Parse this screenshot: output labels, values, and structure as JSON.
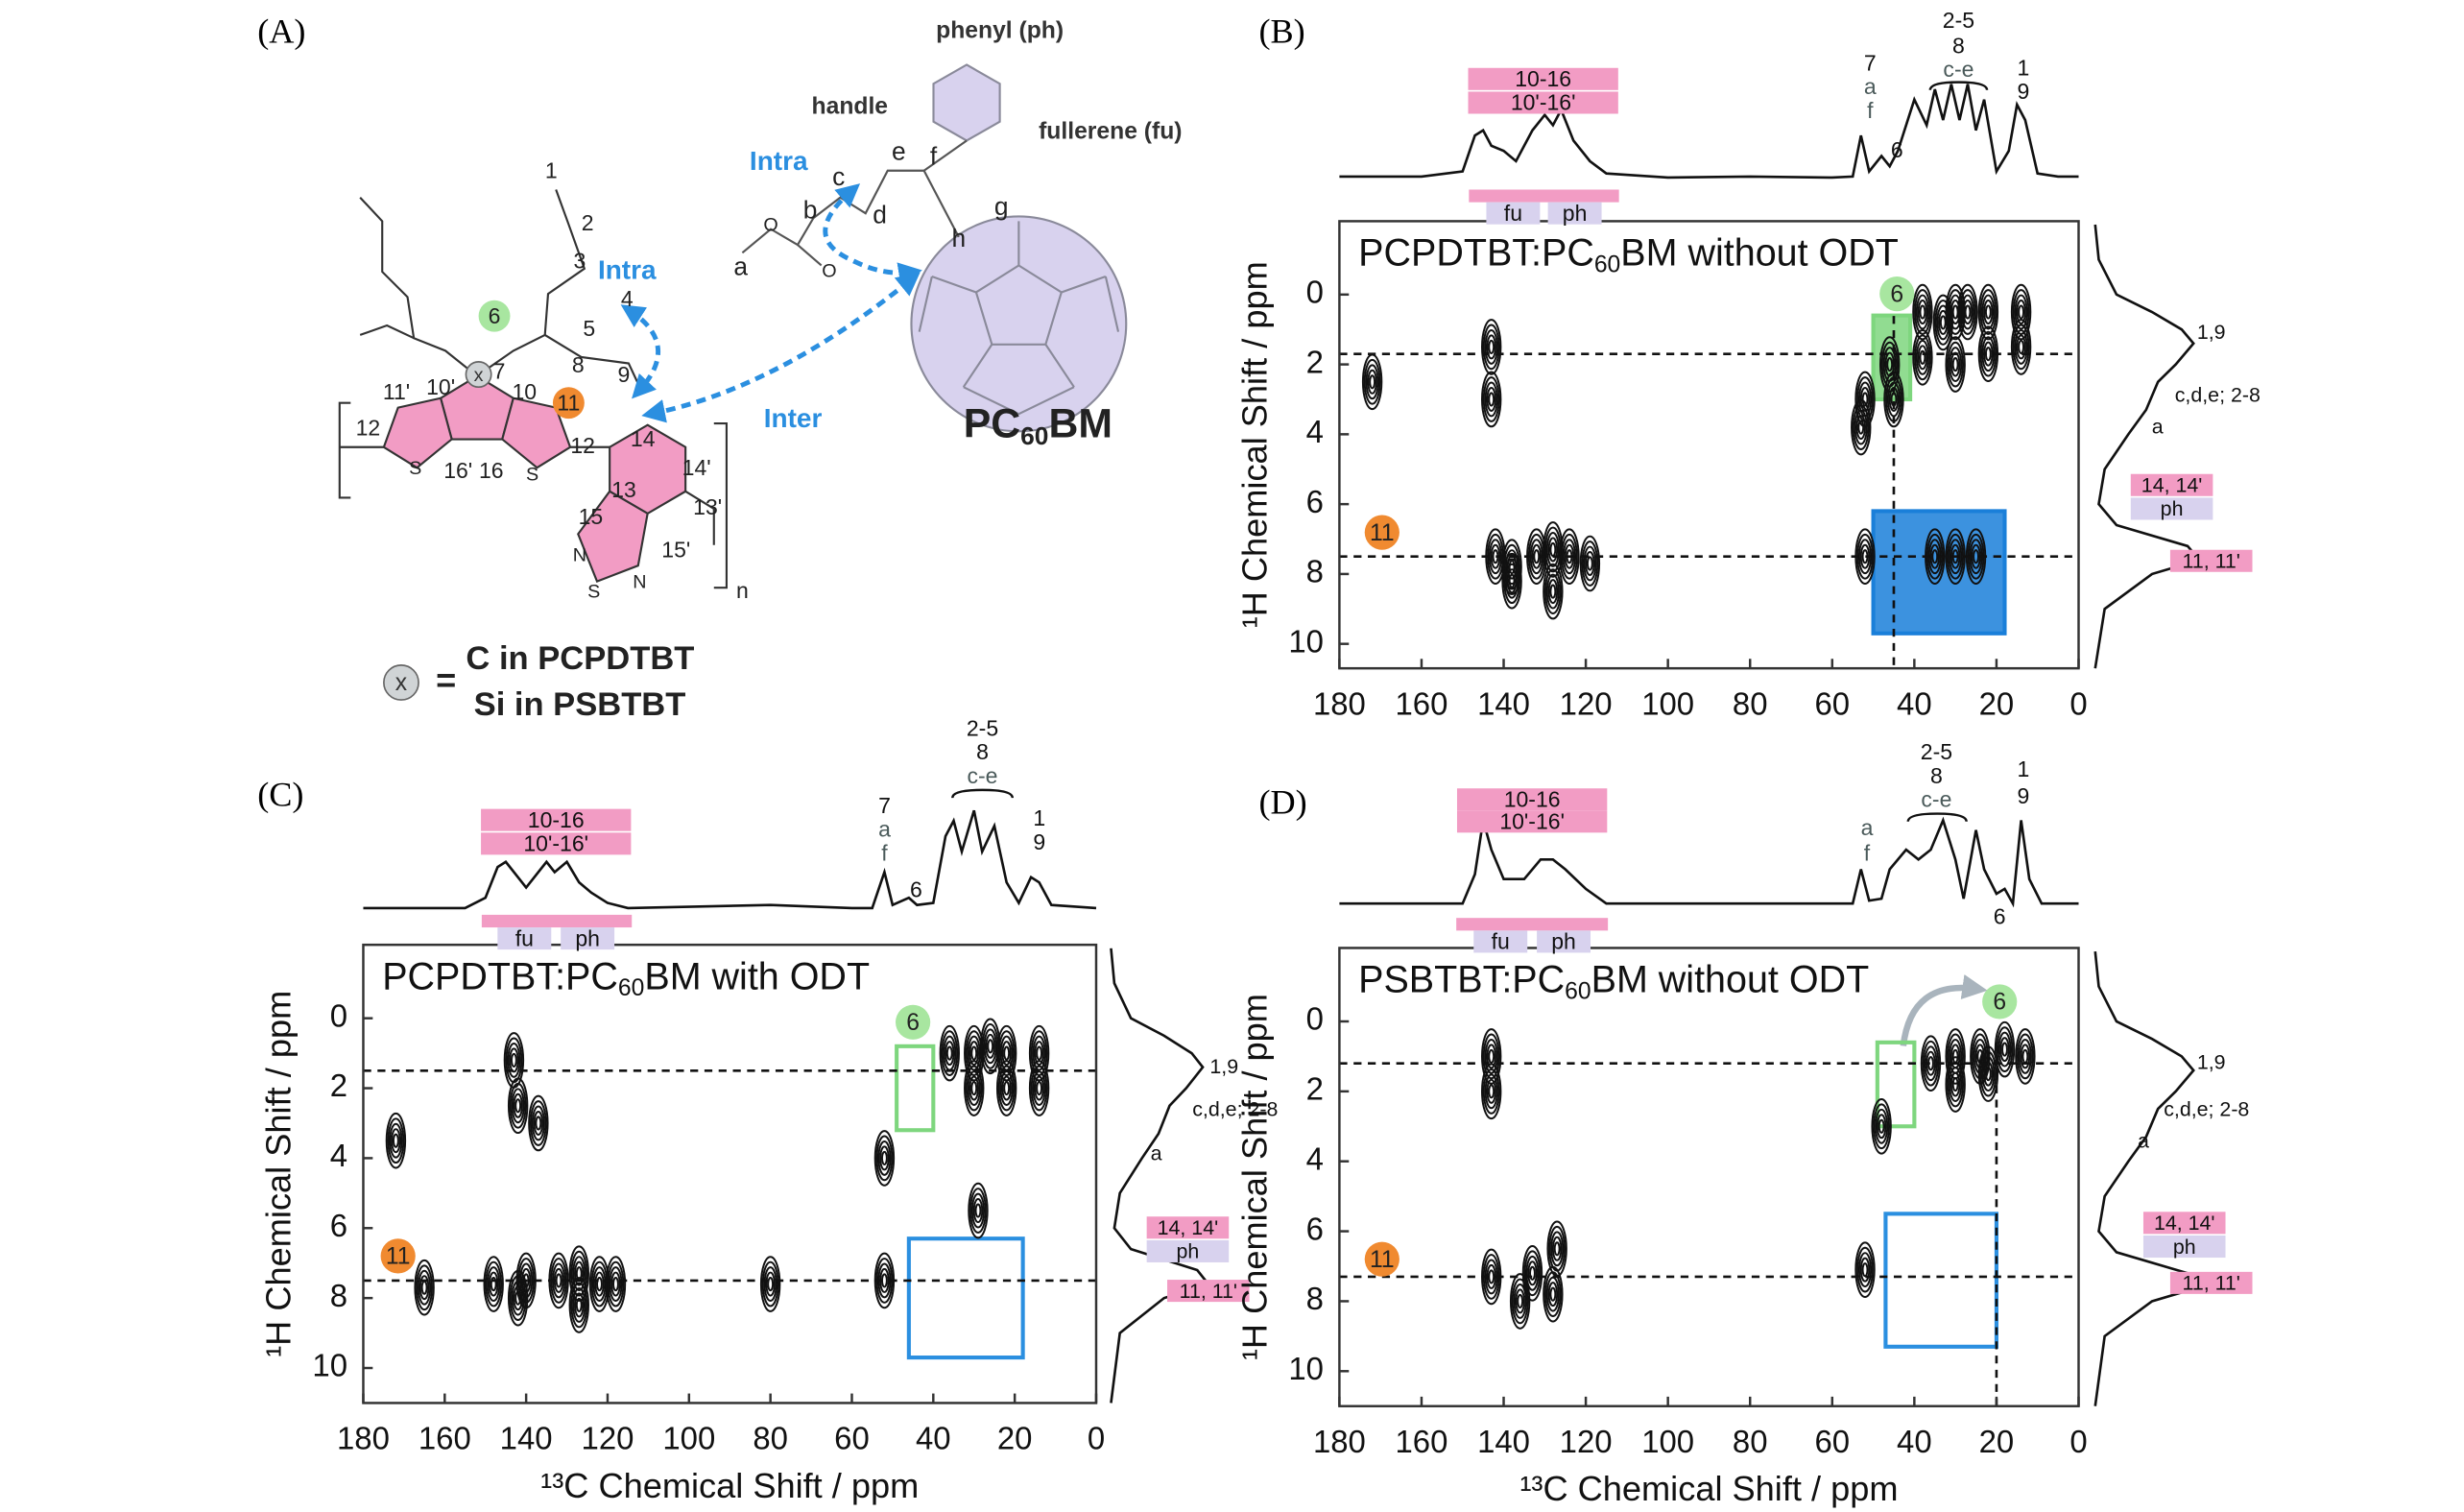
{
  "panel_a": {
    "label": "(A)",
    "labels": [
      "phenyl (ph)",
      "handle",
      "fullerene (fu)",
      "Intra",
      "Intra",
      "Inter",
      "a",
      "b",
      "c",
      "d",
      "e",
      "f",
      "g",
      "h",
      "O",
      "O",
      "1",
      "2",
      "3",
      "4",
      "5",
      "7",
      "8",
      "9",
      "10",
      "10'",
      "11'",
      "12",
      "12",
      "16'",
      "16",
      "14",
      "14'",
      "13'",
      "13",
      "15",
      "15'",
      "S",
      "S",
      "N",
      "S",
      "N",
      "n"
    ],
    "badges": [
      "6",
      "11",
      "x",
      "x"
    ],
    "formula": [
      "PC",
      "60",
      "BM"
    ],
    "legend": [
      "=",
      "C in PCPDTBT",
      "Si in PSBTBT"
    ]
  },
  "chart_data": [
    {
      "type": "contour",
      "panel": "(B)",
      "title": [
        "PCPDTBT:PC",
        "60",
        "BM without ODT"
      ],
      "ylabel": "¹H Chemical Shift / ppm",
      "xlim": [
        180,
        0
      ],
      "xticks": [
        180,
        160,
        140,
        120,
        100,
        80,
        60,
        40,
        20,
        0
      ],
      "ylim": [
        -2.1,
        10.7
      ],
      "y_inverted": true,
      "yticks": [
        0,
        2,
        4,
        6,
        8,
        10
      ],
      "peaks": {
        "x": [
          172,
          143,
          143,
          53,
          52,
          46,
          45,
          38,
          33,
          30,
          27,
          22,
          14,
          38,
          30,
          22,
          14,
          142,
          138,
          132,
          128,
          124,
          119,
          52,
          35,
          30,
          25,
          128,
          138
        ],
        "y": [
          2.5,
          1.5,
          3,
          3.8,
          3,
          2,
          3,
          0.5,
          0.8,
          0.5,
          0.5,
          0.5,
          0.5,
          1.8,
          2,
          1.7,
          1.5,
          7.5,
          7.8,
          7.5,
          7.3,
          7.5,
          7.7,
          7.5,
          7.5,
          7.5,
          7.5,
          8.5,
          8.2
        ]
      },
      "top_projection": {
        "x": [
          180,
          160,
          150,
          147,
          145,
          143,
          140,
          137,
          133,
          130,
          128,
          126,
          123,
          119,
          115,
          100,
          80,
          60,
          55,
          53,
          51,
          48,
          46,
          44,
          40,
          37,
          35,
          33,
          31,
          29,
          27,
          25,
          23,
          20,
          17,
          15,
          13,
          10,
          5,
          0
        ],
        "values": [
          0.05,
          0.05,
          0.1,
          0.45,
          0.5,
          0.35,
          0.3,
          0.2,
          0.5,
          0.65,
          0.55,
          0.7,
          0.4,
          0.2,
          0.08,
          0.04,
          0.05,
          0.04,
          0.05,
          0.45,
          0.1,
          0.25,
          0.15,
          0.3,
          0.8,
          0.55,
          0.9,
          0.6,
          0.95,
          0.6,
          0.95,
          0.5,
          0.8,
          0.1,
          0.3,
          0.75,
          0.6,
          0.08,
          0.05,
          0.05
        ]
      },
      "right_projection": {
        "y": [
          -2,
          -1,
          0,
          0.5,
          1,
          1.4,
          2,
          2.5,
          3.3,
          4,
          5,
          6,
          6.6,
          7.2,
          7.6,
          8,
          9,
          10.7
        ],
        "values": [
          0.02,
          0.05,
          0.2,
          0.5,
          0.75,
          0.85,
          0.7,
          0.55,
          0.45,
          0.3,
          0.1,
          0.05,
          0.2,
          0.8,
          0.9,
          0.5,
          0.1,
          0.02
        ]
      },
      "top_labels": [
        {
          "text": "10-16",
          "style": "pink"
        },
        {
          "text": "10'-16'",
          "style": "pink"
        },
        {
          "text": "fu",
          "style": "lav"
        },
        {
          "text": "ph",
          "style": "lav"
        },
        {
          "text": "7",
          "style": "plain"
        },
        {
          "text": "a",
          "style": "gray"
        },
        {
          "text": "f",
          "style": "gray"
        },
        {
          "text": "6",
          "style": "plain"
        },
        {
          "text": "2-5",
          "style": "plain"
        },
        {
          "text": "8",
          "style": "plain"
        },
        {
          "text": "c-e",
          "style": "gray"
        },
        {
          "text": "1",
          "style": "plain"
        },
        {
          "text": "9",
          "style": "plain"
        }
      ],
      "right_labels": [
        {
          "text": "1,9",
          "style": "plain"
        },
        {
          "text": "c,d,e; 2-8",
          "style": "plain"
        },
        {
          "text": "a",
          "style": "plain"
        },
        {
          "text": "14, 14'",
          "style": "pink"
        },
        {
          "text": "ph",
          "style": "lav"
        },
        {
          "text": "11, 11'",
          "style": "pink"
        }
      ],
      "guides": {
        "h": [
          1.7,
          7.5
        ],
        "v": [
          45
        ]
      },
      "boxes": [
        {
          "x": [
            50,
            41
          ],
          "y": [
            0.6,
            3
          ],
          "color": "#7ed67e",
          "filled": true
        },
        {
          "x": [
            50,
            18
          ],
          "y": [
            6.2,
            9.7
          ],
          "color": "#1a7fd9",
          "filled": true
        }
      ],
      "badges": [
        "6",
        "11"
      ]
    },
    {
      "type": "contour",
      "panel": "(C)",
      "title": [
        "PCPDTBT:PC",
        "60",
        "BM with ODT"
      ],
      "ylabel": "¹H Chemical Shift / ppm",
      "xlabel": "¹³C Chemical Shift / ppm",
      "xlim": [
        180,
        0
      ],
      "xticks": [
        180,
        160,
        140,
        120,
        100,
        80,
        60,
        40,
        20,
        0
      ],
      "ylim": [
        -2.1,
        11
      ],
      "y_inverted": true,
      "yticks": [
        0,
        2,
        4,
        6,
        8,
        10
      ],
      "peaks": {
        "x": [
          172,
          143,
          142,
          137,
          52,
          36,
          30,
          26,
          22,
          14,
          30,
          22,
          14,
          140,
          148,
          165,
          132,
          127,
          122,
          118,
          80,
          52,
          29,
          142,
          127
        ],
        "y": [
          3.5,
          1.2,
          2.5,
          3,
          4,
          1,
          1,
          0.8,
          1,
          1,
          2,
          2,
          2,
          7.5,
          7.6,
          7.7,
          7.5,
          7.3,
          7.6,
          7.6,
          7.6,
          7.5,
          5.5,
          8,
          8.2
        ]
      },
      "top_projection": {
        "x": [
          180,
          155,
          150,
          147,
          145,
          142,
          140,
          137,
          135,
          133,
          130,
          127,
          124,
          120,
          115,
          80,
          60,
          55,
          52,
          50,
          46,
          44,
          40,
          37,
          35,
          33,
          30,
          28,
          25,
          22,
          19,
          16,
          14,
          11,
          0
        ],
        "values": [
          0.05,
          0.05,
          0.15,
          0.45,
          0.5,
          0.35,
          0.25,
          0.4,
          0.5,
          0.4,
          0.5,
          0.3,
          0.2,
          0.1,
          0.05,
          0.08,
          0.05,
          0.05,
          0.4,
          0.08,
          0.15,
          0.08,
          0.1,
          0.75,
          0.9,
          0.6,
          1.0,
          0.6,
          0.85,
          0.3,
          0.1,
          0.35,
          0.3,
          0.08,
          0.05
        ]
      },
      "right_projection": {
        "y": [
          -2,
          -1,
          0,
          0.5,
          1,
          1.4,
          2,
          2.5,
          3.3,
          4,
          5,
          6,
          6.6,
          7.2,
          7.6,
          8,
          9,
          11
        ],
        "values": [
          0.02,
          0.05,
          0.2,
          0.5,
          0.75,
          0.85,
          0.7,
          0.55,
          0.45,
          0.3,
          0.1,
          0.05,
          0.2,
          0.8,
          0.9,
          0.5,
          0.1,
          0.02
        ]
      },
      "top_labels": [
        {
          "text": "10-16",
          "style": "pink"
        },
        {
          "text": "10'-16'",
          "style": "pink"
        },
        {
          "text": "fu",
          "style": "lav"
        },
        {
          "text": "ph",
          "style": "lav"
        },
        {
          "text": "7",
          "style": "plain"
        },
        {
          "text": "a",
          "style": "gray"
        },
        {
          "text": "f",
          "style": "gray"
        },
        {
          "text": "6",
          "style": "plain"
        },
        {
          "text": "2-5",
          "style": "plain"
        },
        {
          "text": "8",
          "style": "plain"
        },
        {
          "text": "c-e",
          "style": "gray"
        },
        {
          "text": "1",
          "style": "plain"
        },
        {
          "text": "9",
          "style": "plain"
        }
      ],
      "right_labels": [
        {
          "text": "1,9",
          "style": "plain"
        },
        {
          "text": "c,d,e; 2-8",
          "style": "plain"
        },
        {
          "text": "a",
          "style": "plain"
        },
        {
          "text": "14, 14'",
          "style": "pink"
        },
        {
          "text": "ph",
          "style": "lav"
        },
        {
          "text": "11, 11'",
          "style": "pink"
        }
      ],
      "guides": {
        "h": [
          1.5,
          7.5
        ],
        "v": []
      },
      "boxes": [
        {
          "x": [
            49,
            40
          ],
          "y": [
            0.8,
            3.2
          ],
          "color": "#7ed67e",
          "filled": false
        },
        {
          "x": [
            46,
            18
          ],
          "y": [
            6.3,
            9.7
          ],
          "color": "#2b8fe0",
          "filled": false
        }
      ],
      "badges": [
        "6",
        "11"
      ]
    },
    {
      "type": "contour",
      "panel": "(D)",
      "title": [
        "PSBTBT:PC",
        "60",
        "BM without ODT"
      ],
      "ylabel": "¹H Chemical Shift / ppm",
      "xlabel": "¹³C Chemical Shift / ppm",
      "xlim": [
        180,
        0
      ],
      "xticks": [
        180,
        160,
        140,
        120,
        100,
        80,
        60,
        40,
        20,
        0
      ],
      "ylim": [
        -2.1,
        11
      ],
      "y_inverted": true,
      "yticks": [
        0,
        2,
        4,
        6,
        8,
        10
      ],
      "peaks": {
        "x": [
          143,
          143,
          48,
          36,
          30,
          24,
          18,
          13,
          30,
          22,
          143,
          133,
          127,
          128,
          136,
          52
        ],
        "y": [
          2,
          1,
          3,
          1.2,
          1,
          1,
          0.8,
          1,
          1.8,
          1.5,
          7.3,
          7.2,
          6.5,
          7.8,
          8,
          7.1
        ]
      },
      "top_projection": {
        "x": [
          180,
          150,
          147,
          145,
          143,
          140,
          135,
          131,
          128,
          125,
          120,
          115,
          60,
          55,
          53,
          51,
          48,
          46,
          42,
          39,
          36,
          33,
          30,
          28,
          25,
          23,
          20,
          18,
          16,
          14,
          12,
          9,
          0
        ],
        "values": [
          0.05,
          0.05,
          0.35,
          0.9,
          0.6,
          0.3,
          0.3,
          0.5,
          0.5,
          0.4,
          0.2,
          0.05,
          0.05,
          0.05,
          0.4,
          0.08,
          0.1,
          0.4,
          0.6,
          0.5,
          0.6,
          0.9,
          0.5,
          0.1,
          0.8,
          0.4,
          0.15,
          0.2,
          0.05,
          0.9,
          0.3,
          0.05,
          0.05
        ]
      },
      "right_projection": {
        "y": [
          -2,
          -1,
          0,
          0.5,
          1,
          1.4,
          2,
          2.5,
          3.3,
          4,
          5,
          6,
          6.6,
          7.2,
          7.6,
          8,
          9,
          11
        ],
        "values": [
          0.02,
          0.05,
          0.2,
          0.5,
          0.75,
          0.85,
          0.7,
          0.55,
          0.45,
          0.3,
          0.1,
          0.05,
          0.2,
          0.8,
          0.9,
          0.5,
          0.1,
          0.02
        ]
      },
      "top_labels": [
        {
          "text": "10-16",
          "style": "pink"
        },
        {
          "text": "10'-16'",
          "style": "pink"
        },
        {
          "text": "fu",
          "style": "lav"
        },
        {
          "text": "ph",
          "style": "lav"
        },
        {
          "text": "a",
          "style": "gray"
        },
        {
          "text": "f",
          "style": "gray"
        },
        {
          "text": "2-5",
          "style": "plain"
        },
        {
          "text": "8",
          "style": "plain"
        },
        {
          "text": "c-e",
          "style": "gray"
        },
        {
          "text": "6",
          "style": "plain"
        },
        {
          "text": "1",
          "style": "plain"
        },
        {
          "text": "9",
          "style": "plain"
        }
      ],
      "right_labels": [
        {
          "text": "1,9",
          "style": "plain"
        },
        {
          "text": "c,d,e; 2-8",
          "style": "plain"
        },
        {
          "text": "a",
          "style": "plain"
        },
        {
          "text": "14, 14'",
          "style": "pink"
        },
        {
          "text": "ph",
          "style": "lav"
        },
        {
          "text": "11, 11'",
          "style": "pink"
        }
      ],
      "guides": {
        "h": [
          1.2,
          7.3
        ],
        "v": [
          20
        ]
      },
      "boxes": [
        {
          "x": [
            49,
            40
          ],
          "y": [
            0.6,
            3
          ],
          "color": "#7ed67e",
          "filled": false
        },
        {
          "x": [
            47,
            20
          ],
          "y": [
            5.5,
            9.3
          ],
          "color": "#2b8fe0",
          "filled": false
        }
      ],
      "badges": [
        "6",
        "11"
      ]
    }
  ]
}
